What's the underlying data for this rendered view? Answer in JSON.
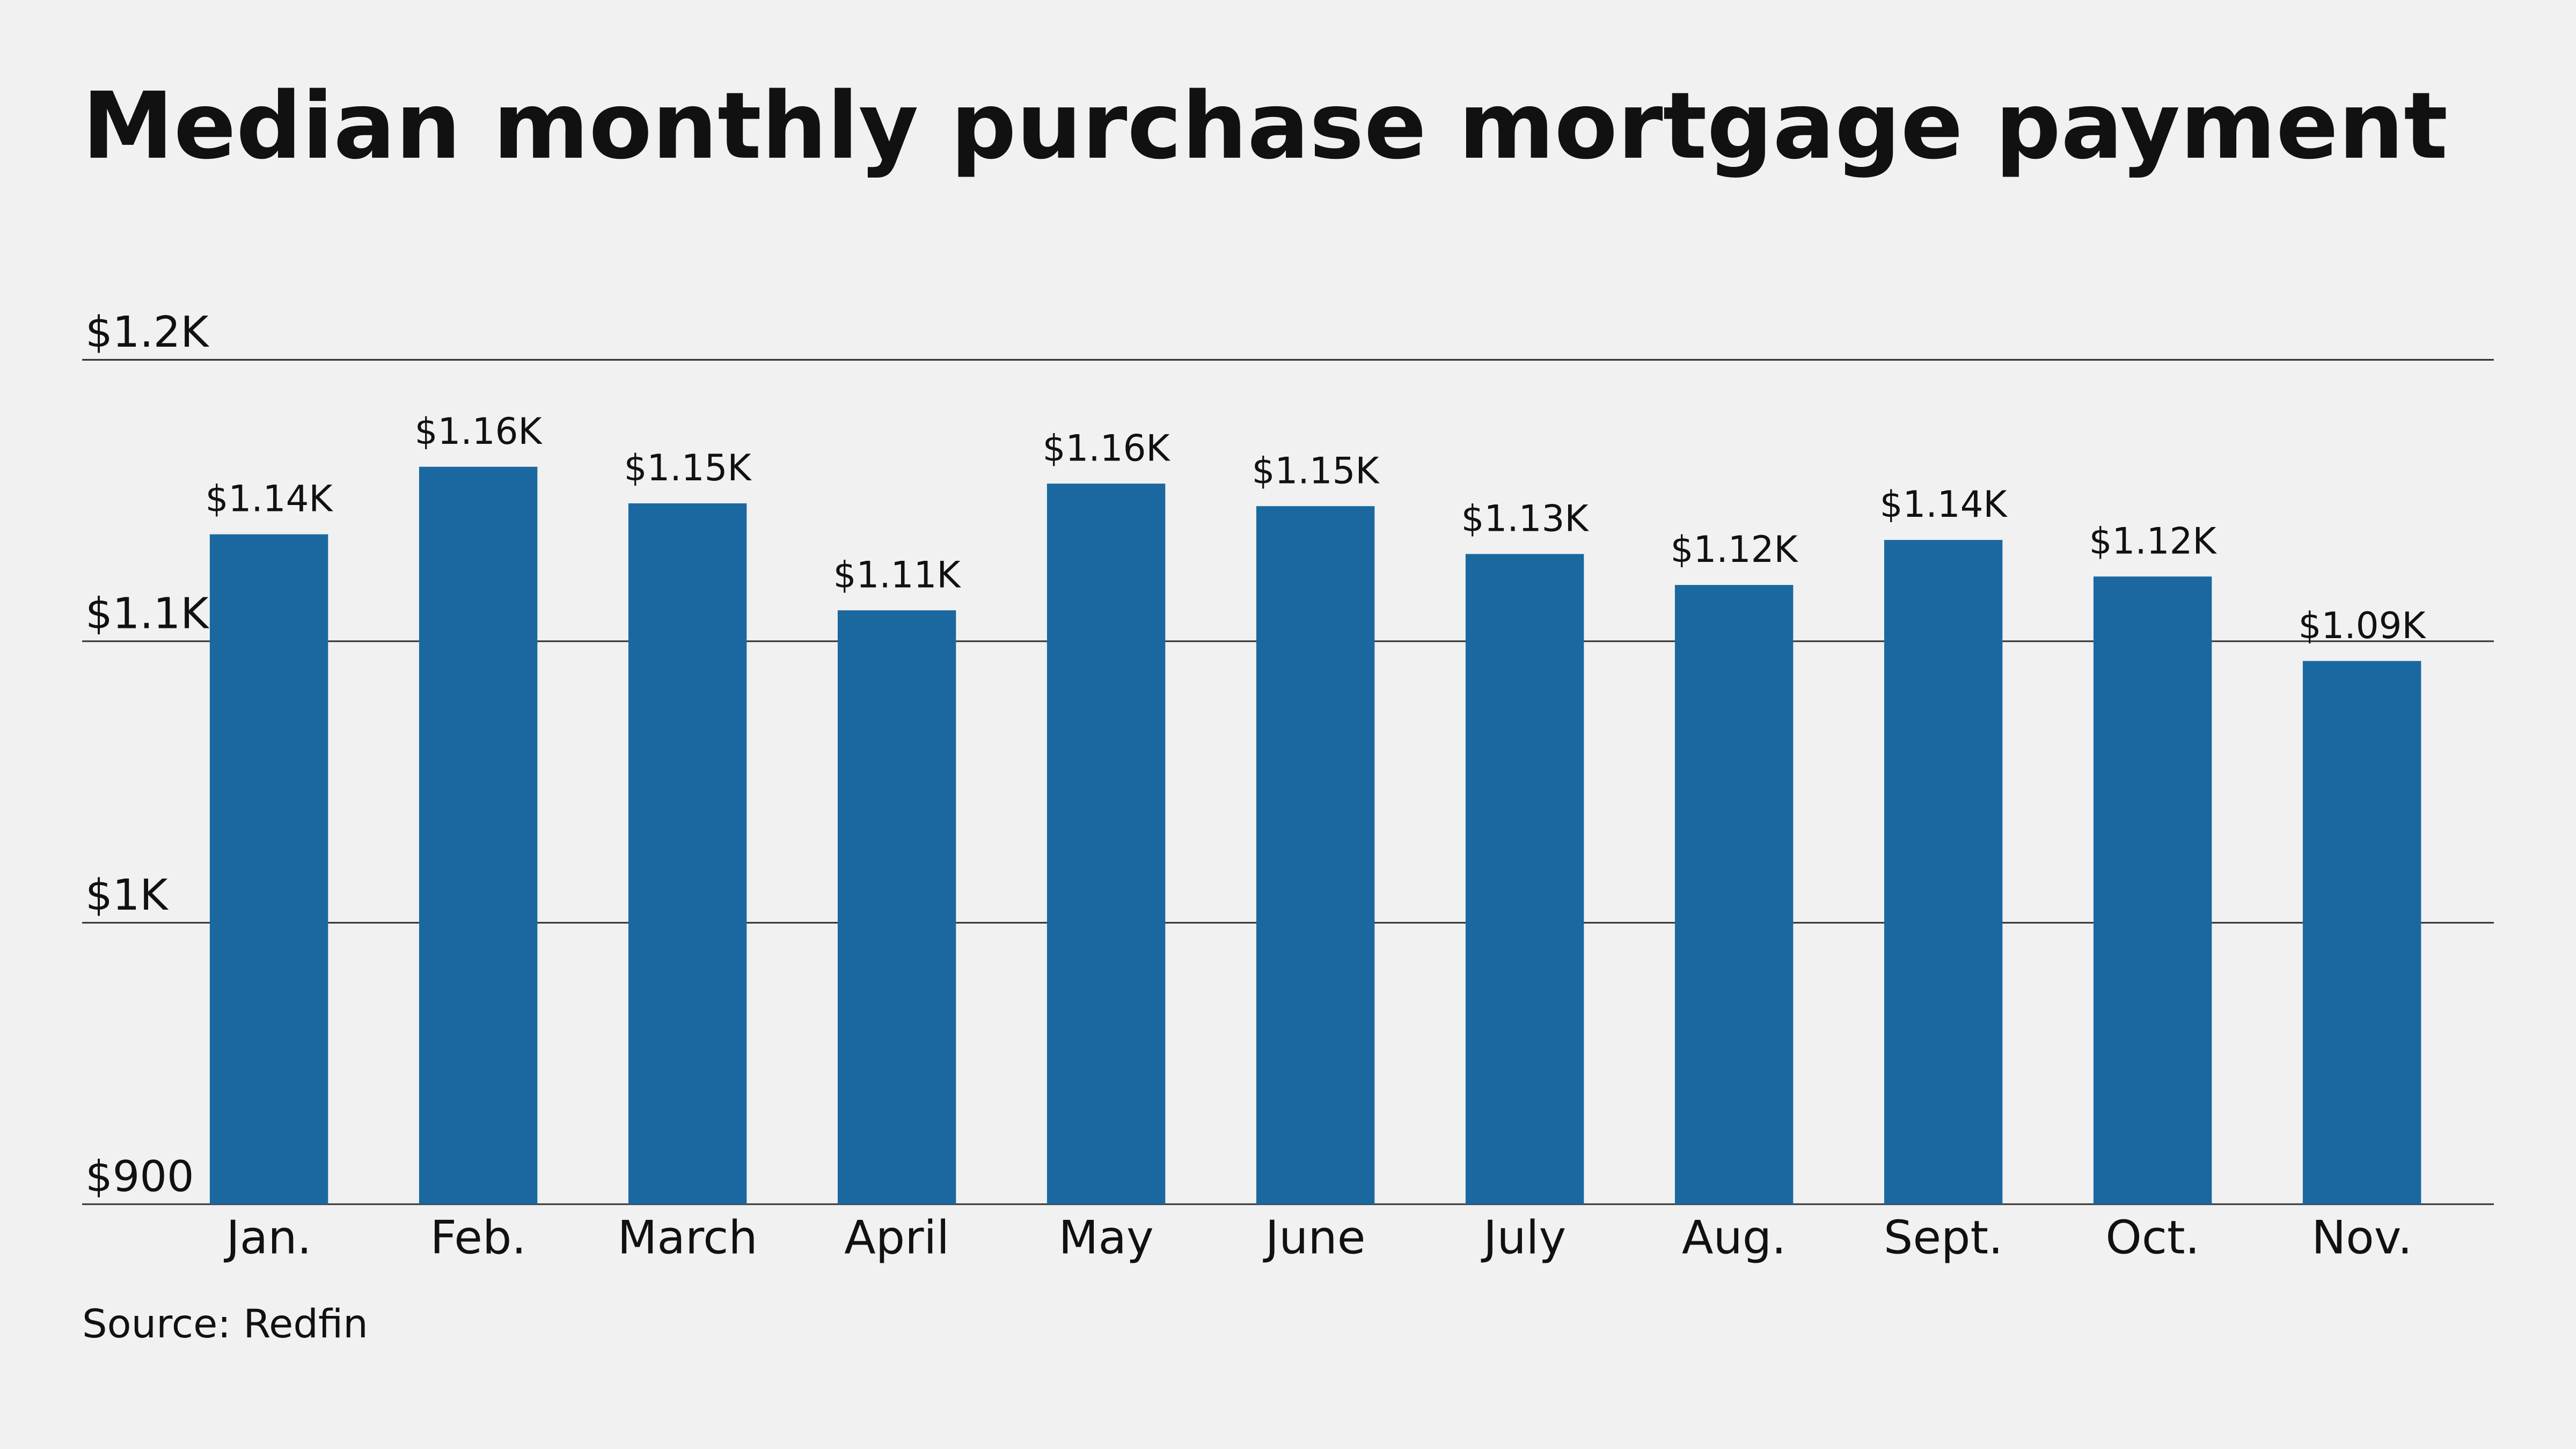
{
  "chart_data": {
    "type": "bar",
    "title": "Median monthly purchase mortgage payment",
    "categories": [
      "Jan.",
      "Feb.",
      "March",
      "April",
      "May",
      "June",
      "July",
      "Aug.",
      "Sept.",
      "Oct.",
      "Nov."
    ],
    "values": [
      1138,
      1162,
      1149,
      1111,
      1156,
      1148,
      1131,
      1120,
      1136,
      1123,
      1093
    ],
    "value_labels": [
      "$1.14K",
      "$1.16K",
      "$1.15K",
      "$1.11K",
      "$1.16K",
      "$1.15K",
      "$1.13K",
      "$1.12K",
      "$1.14K",
      "$1.12K",
      "$1.09K"
    ],
    "color": "#1b68a0",
    "ylim": [
      900,
      1200
    ],
    "yticks": [
      {
        "value": 900,
        "label": "$900"
      },
      {
        "value": 1000,
        "label": "$1K"
      },
      {
        "value": 1100,
        "label": "$1.1K"
      },
      {
        "value": 1200,
        "label": "$1.2K"
      }
    ],
    "grid": true,
    "source": "Source: Redfin"
  }
}
